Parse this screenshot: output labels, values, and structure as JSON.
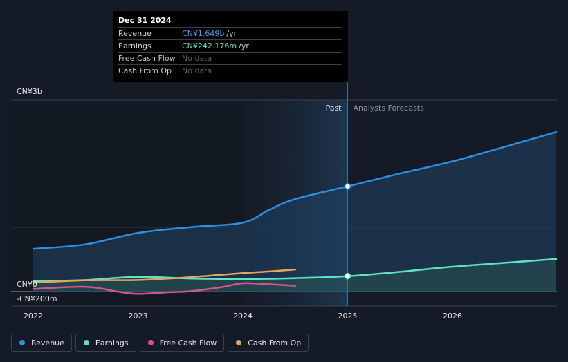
{
  "chart_data": {
    "type": "line",
    "title": "",
    "xlabel": "",
    "ylabel": "",
    "x_ticks": [
      "2022",
      "2023",
      "2024",
      "2025",
      "2026"
    ],
    "y_ticks": [
      "CN¥3b",
      "CN¥0",
      "-CN¥200m"
    ],
    "ylim": [
      -200,
      3000
    ],
    "y_unit": "CN¥m",
    "region_labels": {
      "past": "Past",
      "forecast": "Analysts Forecasts"
    },
    "tooltip": {
      "date": "Dec 31 2024",
      "rows": [
        {
          "name": "Revenue",
          "value": "CN¥1.649b",
          "unit": "/yr",
          "color": "#3d9be9"
        },
        {
          "name": "Earnings",
          "value": "CN¥242.176m",
          "unit": "/yr",
          "color": "#5ee4c3"
        },
        {
          "name": "Free Cash Flow",
          "value": "No data",
          "unit": "",
          "color": "#5b6068"
        },
        {
          "name": "Cash From Op",
          "value": "No data",
          "unit": "",
          "color": "#5b6068"
        }
      ]
    },
    "series": [
      {
        "name": "Revenue",
        "color": "#2e91e0",
        "points": [
          [
            2022.0,
            670
          ],
          [
            2022.5,
            740
          ],
          [
            2023.0,
            920
          ],
          [
            2023.5,
            1010
          ],
          [
            2024.0,
            1080
          ],
          [
            2024.25,
            1280
          ],
          [
            2024.5,
            1450
          ],
          [
            2025.0,
            1649
          ],
          [
            2025.5,
            1850
          ],
          [
            2026.0,
            2040
          ],
          [
            2026.5,
            2270
          ],
          [
            2026.99,
            2500
          ]
        ]
      },
      {
        "name": "Earnings",
        "color": "#5ee4c3",
        "points": [
          [
            2022.0,
            160
          ],
          [
            2022.5,
            180
          ],
          [
            2023.0,
            230
          ],
          [
            2023.5,
            205
          ],
          [
            2024.0,
            195
          ],
          [
            2024.5,
            210
          ],
          [
            2025.0,
            242
          ],
          [
            2025.5,
            310
          ],
          [
            2026.0,
            390
          ],
          [
            2026.5,
            450
          ],
          [
            2026.99,
            510
          ]
        ]
      },
      {
        "name": "Free Cash Flow",
        "color": "#d9548c",
        "points": [
          [
            2022.0,
            40
          ],
          [
            2022.5,
            75
          ],
          [
            2022.8,
            0
          ],
          [
            2023.0,
            -35
          ],
          [
            2023.3,
            -10
          ],
          [
            2023.5,
            5
          ],
          [
            2023.8,
            70
          ],
          [
            2024.0,
            130
          ],
          [
            2024.25,
            115
          ],
          [
            2024.5,
            90
          ]
        ]
      },
      {
        "name": "Cash From Op",
        "color": "#e5a55c",
        "points": [
          [
            2022.0,
            140
          ],
          [
            2022.5,
            175
          ],
          [
            2023.0,
            180
          ],
          [
            2023.5,
            225
          ],
          [
            2024.0,
            290
          ],
          [
            2024.25,
            315
          ],
          [
            2024.5,
            345
          ]
        ]
      }
    ],
    "highlight": {
      "x": 2025.0,
      "series": [
        "Revenue",
        "Earnings"
      ]
    }
  },
  "legend": [
    {
      "name": "Revenue",
      "color": "#2e91e0"
    },
    {
      "name": "Earnings",
      "color": "#5ee4c3"
    },
    {
      "name": "Free Cash Flow",
      "color": "#d9548c"
    },
    {
      "name": "Cash From Op",
      "color": "#e5a55c"
    }
  ]
}
